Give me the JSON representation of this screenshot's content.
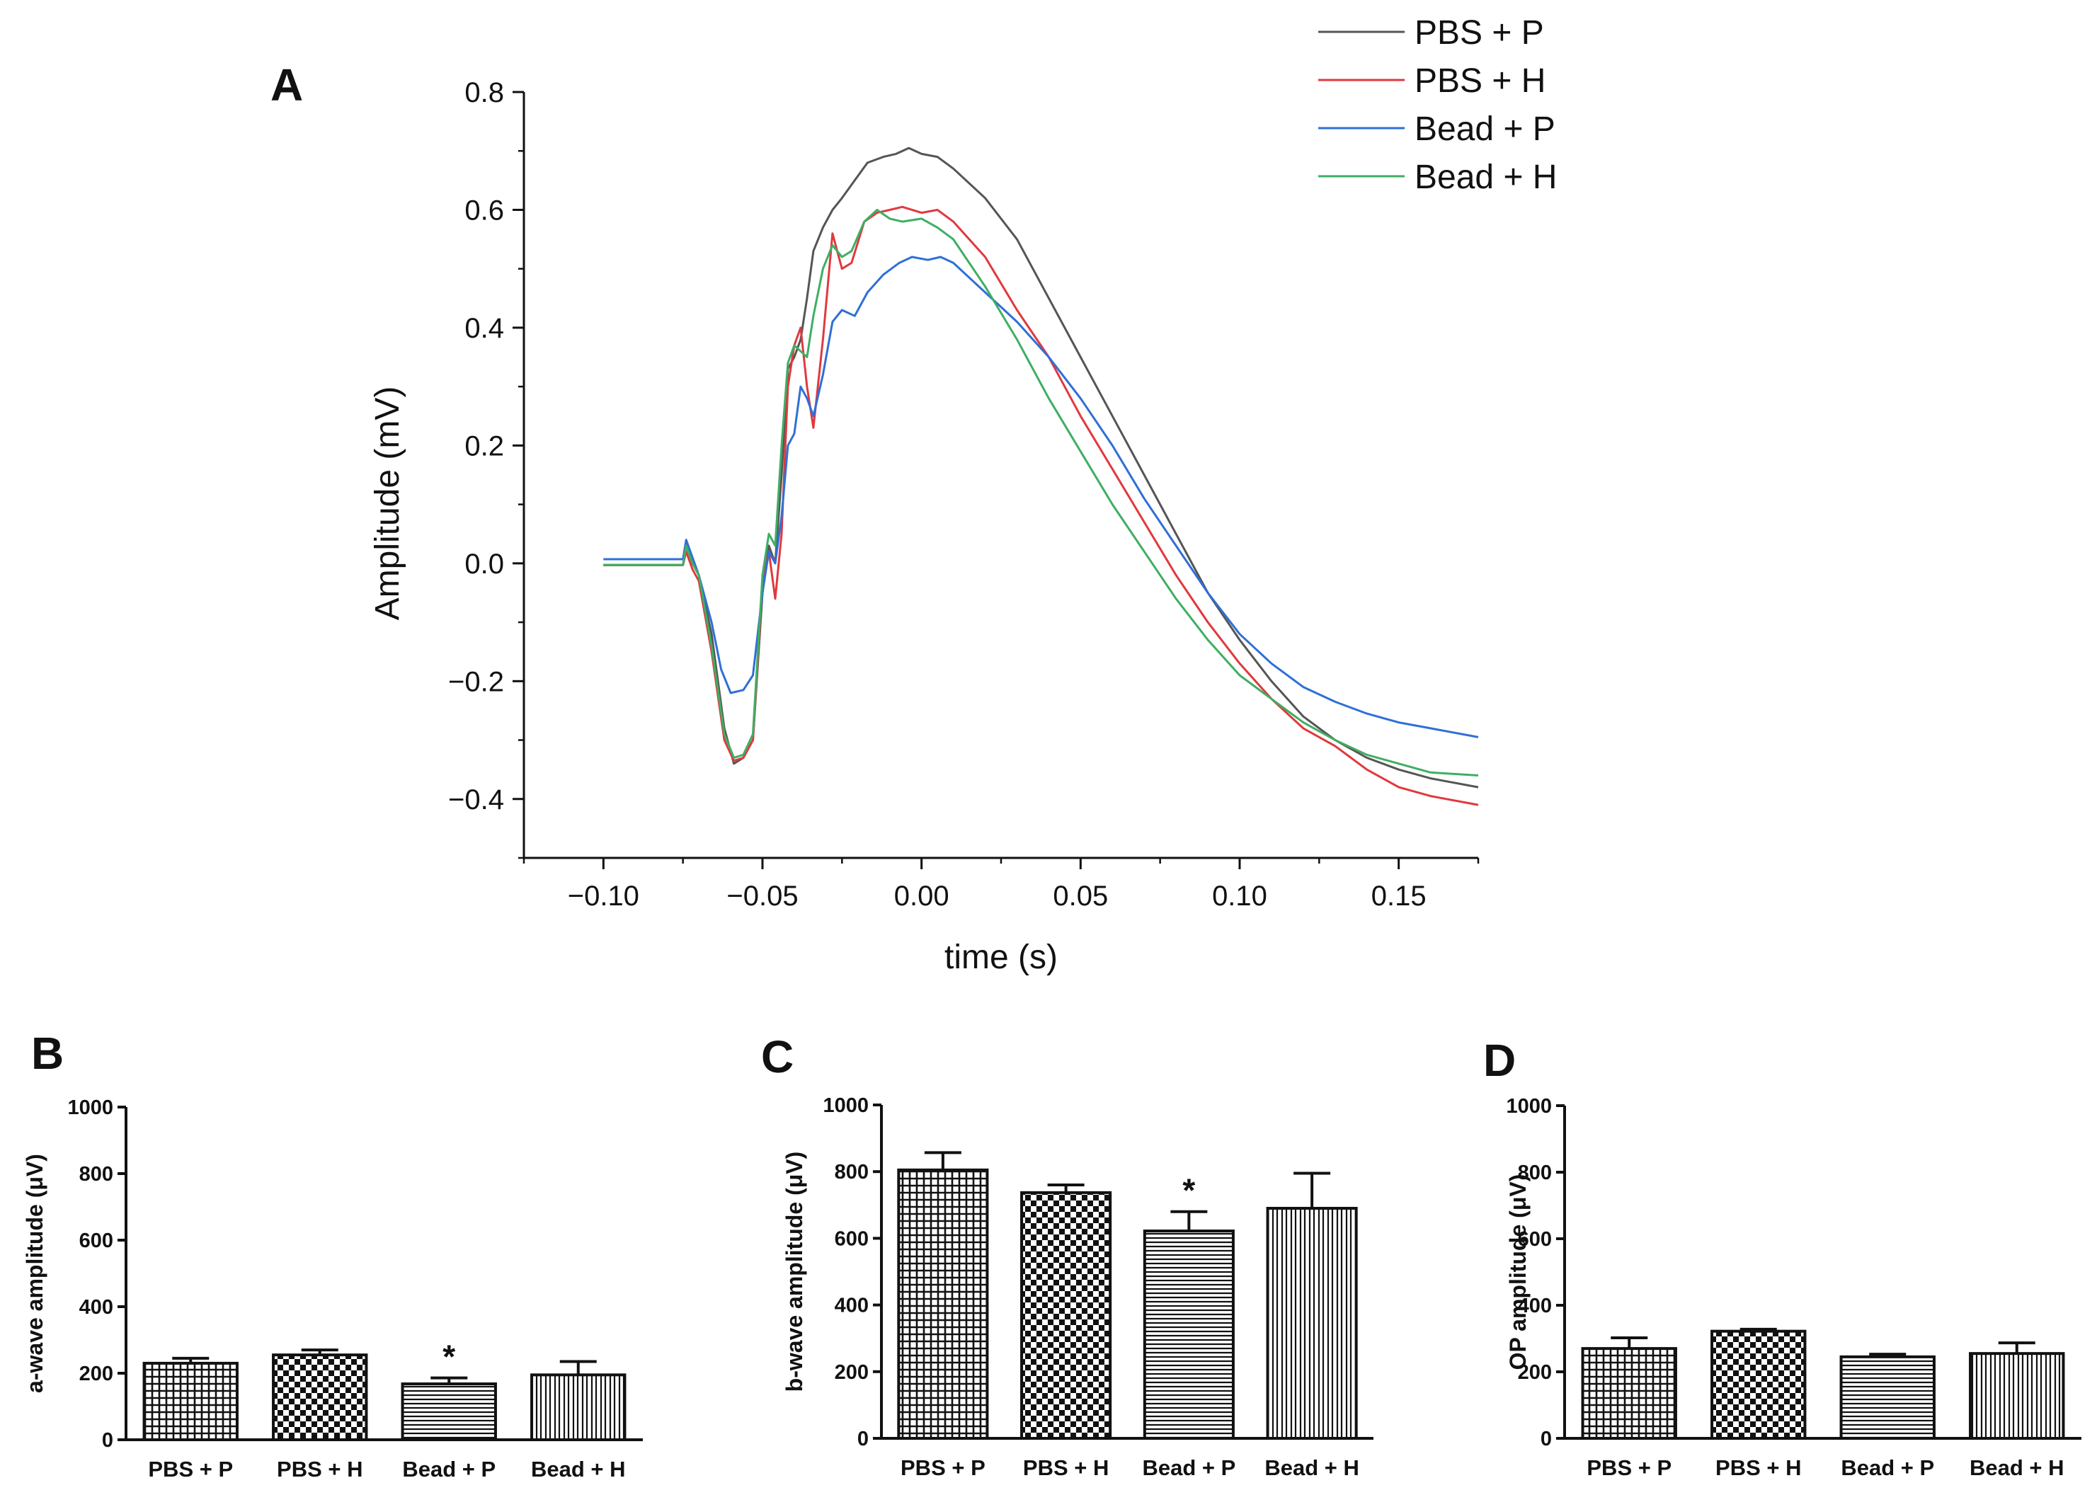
{
  "chart_data": [
    {
      "panel": "A",
      "type": "line",
      "xlabel": "time (s)",
      "ylabel": "Amplitude (mV)",
      "xlim": [
        -0.125,
        0.175
      ],
      "ylim": [
        -0.5,
        0.8
      ],
      "xticks": [
        -0.1,
        -0.05,
        0.0,
        0.05,
        0.1,
        0.15
      ],
      "xtick_labels": [
        "−0.10",
        "−0.05",
        "0.00",
        "0.05",
        "0.10",
        "0.15"
      ],
      "yticks": [
        -0.4,
        -0.2,
        0.0,
        0.2,
        0.4,
        0.6,
        0.8
      ],
      "ytick_labels": [
        "−0.4",
        "−0.2",
        "0.0",
        "0.2",
        "0.4",
        "0.6",
        "0.8"
      ],
      "legend_position": "top-right",
      "series": [
        {
          "name": "PBS + P",
          "color": "#555555",
          "points": [
            [
              -0.1,
              -0.003
            ],
            [
              -0.075,
              -0.003
            ],
            [
              -0.074,
              0.035
            ],
            [
              -0.072,
              0.0
            ],
            [
              -0.07,
              -0.02
            ],
            [
              -0.066,
              -0.12
            ],
            [
              -0.062,
              -0.28
            ],
            [
              -0.059,
              -0.34
            ],
            [
              -0.056,
              -0.33
            ],
            [
              -0.053,
              -0.3
            ],
            [
              -0.05,
              -0.05
            ],
            [
              -0.048,
              0.03
            ],
            [
              -0.046,
              0.0
            ],
            [
              -0.044,
              0.15
            ],
            [
              -0.042,
              0.33
            ],
            [
              -0.04,
              0.35
            ],
            [
              -0.038,
              0.38
            ],
            [
              -0.036,
              0.45
            ],
            [
              -0.034,
              0.53
            ],
            [
              -0.031,
              0.57
            ],
            [
              -0.028,
              0.6
            ],
            [
              -0.025,
              0.62
            ],
            [
              -0.021,
              0.65
            ],
            [
              -0.017,
              0.68
            ],
            [
              -0.012,
              0.69
            ],
            [
              -0.008,
              0.695
            ],
            [
              -0.004,
              0.705
            ],
            [
              0.0,
              0.695
            ],
            [
              0.005,
              0.69
            ],
            [
              0.01,
              0.67
            ],
            [
              0.02,
              0.62
            ],
            [
              0.03,
              0.55
            ],
            [
              0.04,
              0.45
            ],
            [
              0.05,
              0.35
            ],
            [
              0.06,
              0.25
            ],
            [
              0.07,
              0.15
            ],
            [
              0.08,
              0.05
            ],
            [
              0.09,
              -0.05
            ],
            [
              0.1,
              -0.13
            ],
            [
              0.11,
              -0.2
            ],
            [
              0.12,
              -0.26
            ],
            [
              0.13,
              -0.3
            ],
            [
              0.14,
              -0.33
            ],
            [
              0.15,
              -0.35
            ],
            [
              0.16,
              -0.365
            ],
            [
              0.175,
              -0.38
            ]
          ]
        },
        {
          "name": "PBS + H",
          "color": "#e0393e",
          "points": [
            [
              -0.1,
              -0.003
            ],
            [
              -0.075,
              -0.003
            ],
            [
              -0.074,
              0.02
            ],
            [
              -0.072,
              -0.01
            ],
            [
              -0.07,
              -0.03
            ],
            [
              -0.066,
              -0.15
            ],
            [
              -0.062,
              -0.3
            ],
            [
              -0.059,
              -0.335
            ],
            [
              -0.056,
              -0.33
            ],
            [
              -0.053,
              -0.3
            ],
            [
              -0.05,
              -0.03
            ],
            [
              -0.048,
              0.02
            ],
            [
              -0.046,
              -0.06
            ],
            [
              -0.044,
              0.05
            ],
            [
              -0.042,
              0.3
            ],
            [
              -0.04,
              0.37
            ],
            [
              -0.038,
              0.4
            ],
            [
              -0.036,
              0.3
            ],
            [
              -0.034,
              0.23
            ],
            [
              -0.031,
              0.38
            ],
            [
              -0.028,
              0.56
            ],
            [
              -0.025,
              0.5
            ],
            [
              -0.022,
              0.51
            ],
            [
              -0.018,
              0.58
            ],
            [
              -0.014,
              0.595
            ],
            [
              -0.01,
              0.6
            ],
            [
              -0.006,
              0.605
            ],
            [
              0.0,
              0.595
            ],
            [
              0.005,
              0.6
            ],
            [
              0.01,
              0.58
            ],
            [
              0.02,
              0.52
            ],
            [
              0.03,
              0.43
            ],
            [
              0.04,
              0.35
            ],
            [
              0.05,
              0.25
            ],
            [
              0.06,
              0.16
            ],
            [
              0.07,
              0.07
            ],
            [
              0.08,
              -0.02
            ],
            [
              0.09,
              -0.1
            ],
            [
              0.1,
              -0.17
            ],
            [
              0.11,
              -0.23
            ],
            [
              0.12,
              -0.28
            ],
            [
              0.13,
              -0.31
            ],
            [
              0.14,
              -0.35
            ],
            [
              0.15,
              -0.38
            ],
            [
              0.16,
              -0.395
            ],
            [
              0.175,
              -0.41
            ]
          ]
        },
        {
          "name": "Bead + P",
          "color": "#2f6fd6",
          "points": [
            [
              -0.1,
              0.007
            ],
            [
              -0.075,
              0.007
            ],
            [
              -0.074,
              0.04
            ],
            [
              -0.072,
              0.01
            ],
            [
              -0.07,
              -0.02
            ],
            [
              -0.066,
              -0.1
            ],
            [
              -0.063,
              -0.18
            ],
            [
              -0.06,
              -0.22
            ],
            [
              -0.056,
              -0.215
            ],
            [
              -0.053,
              -0.19
            ],
            [
              -0.05,
              -0.05
            ],
            [
              -0.048,
              0.02
            ],
            [
              -0.046,
              0.0
            ],
            [
              -0.044,
              0.08
            ],
            [
              -0.042,
              0.2
            ],
            [
              -0.04,
              0.22
            ],
            [
              -0.038,
              0.3
            ],
            [
              -0.036,
              0.28
            ],
            [
              -0.034,
              0.25
            ],
            [
              -0.031,
              0.32
            ],
            [
              -0.028,
              0.41
            ],
            [
              -0.025,
              0.43
            ],
            [
              -0.021,
              0.42
            ],
            [
              -0.017,
              0.46
            ],
            [
              -0.012,
              0.49
            ],
            [
              -0.007,
              0.51
            ],
            [
              -0.003,
              0.52
            ],
            [
              0.002,
              0.515
            ],
            [
              0.006,
              0.52
            ],
            [
              0.01,
              0.51
            ],
            [
              0.02,
              0.46
            ],
            [
              0.03,
              0.41
            ],
            [
              0.04,
              0.35
            ],
            [
              0.05,
              0.28
            ],
            [
              0.06,
              0.2
            ],
            [
              0.07,
              0.11
            ],
            [
              0.08,
              0.03
            ],
            [
              0.09,
              -0.05
            ],
            [
              0.1,
              -0.12
            ],
            [
              0.11,
              -0.17
            ],
            [
              0.12,
              -0.21
            ],
            [
              0.13,
              -0.235
            ],
            [
              0.14,
              -0.255
            ],
            [
              0.15,
              -0.27
            ],
            [
              0.16,
              -0.28
            ],
            [
              0.175,
              -0.295
            ]
          ]
        },
        {
          "name": "Bead + H",
          "color": "#3fae63",
          "points": [
            [
              -0.1,
              -0.003
            ],
            [
              -0.075,
              -0.003
            ],
            [
              -0.074,
              0.03
            ],
            [
              -0.072,
              0.0
            ],
            [
              -0.07,
              -0.02
            ],
            [
              -0.066,
              -0.14
            ],
            [
              -0.062,
              -0.29
            ],
            [
              -0.059,
              -0.33
            ],
            [
              -0.056,
              -0.325
            ],
            [
              -0.053,
              -0.29
            ],
            [
              -0.05,
              -0.02
            ],
            [
              -0.048,
              0.05
            ],
            [
              -0.046,
              0.03
            ],
            [
              -0.044,
              0.2
            ],
            [
              -0.042,
              0.34
            ],
            [
              -0.04,
              0.37
            ],
            [
              -0.038,
              0.36
            ],
            [
              -0.036,
              0.35
            ],
            [
              -0.034,
              0.42
            ],
            [
              -0.031,
              0.5
            ],
            [
              -0.028,
              0.54
            ],
            [
              -0.025,
              0.52
            ],
            [
              -0.022,
              0.53
            ],
            [
              -0.018,
              0.58
            ],
            [
              -0.014,
              0.6
            ],
            [
              -0.01,
              0.585
            ],
            [
              -0.006,
              0.58
            ],
            [
              0.0,
              0.585
            ],
            [
              0.005,
              0.57
            ],
            [
              0.01,
              0.55
            ],
            [
              0.02,
              0.47
            ],
            [
              0.03,
              0.38
            ],
            [
              0.04,
              0.28
            ],
            [
              0.05,
              0.19
            ],
            [
              0.06,
              0.1
            ],
            [
              0.07,
              0.02
            ],
            [
              0.08,
              -0.06
            ],
            [
              0.09,
              -0.13
            ],
            [
              0.1,
              -0.19
            ],
            [
              0.11,
              -0.23
            ],
            [
              0.12,
              -0.27
            ],
            [
              0.13,
              -0.3
            ],
            [
              0.14,
              -0.325
            ],
            [
              0.15,
              -0.34
            ],
            [
              0.16,
              -0.355
            ],
            [
              0.175,
              -0.36
            ]
          ]
        }
      ]
    },
    {
      "panel": "B",
      "type": "bar",
      "ylabel": "a-wave amplitude (μV)",
      "ylim": [
        0,
        1000
      ],
      "yticks": [
        0,
        200,
        400,
        600,
        800,
        1000
      ],
      "categories": [
        "PBS + P",
        "PBS + H",
        "Bead + P",
        "Bead + H"
      ],
      "values": [
        230,
        255,
        168,
        195
      ],
      "errors": [
        15,
        15,
        18,
        40
      ],
      "patterns": [
        "grid",
        "checker",
        "hlines",
        "vlines"
      ],
      "significance": [
        "",
        "",
        "*",
        ""
      ]
    },
    {
      "panel": "C",
      "type": "bar",
      "ylabel": "b-wave amplitude (μV)",
      "ylim": [
        0,
        1000
      ],
      "yticks": [
        0,
        200,
        400,
        600,
        800,
        1000
      ],
      "categories": [
        "PBS + P",
        "PBS + H",
        "Bead + P",
        "Bead + H"
      ],
      "values": [
        805,
        737,
        622,
        690
      ],
      "errors": [
        52,
        23,
        58,
        105
      ],
      "patterns": [
        "grid",
        "checker",
        "hlines",
        "vlines"
      ],
      "significance": [
        "",
        "",
        "*",
        ""
      ]
    },
    {
      "panel": "D",
      "type": "bar",
      "ylabel": "OP amplitude (μV)",
      "ylim": [
        0,
        1000
      ],
      "yticks": [
        0,
        200,
        400,
        600,
        800,
        1000
      ],
      "categories": [
        "PBS + P",
        "PBS + H",
        "Bead + P",
        "Bead + H"
      ],
      "values": [
        270,
        322,
        245,
        255
      ],
      "errors": [
        32,
        6,
        8,
        32
      ],
      "patterns": [
        "grid",
        "checker",
        "hlines",
        "vlines"
      ],
      "significance": [
        "",
        "",
        "",
        ""
      ]
    }
  ]
}
